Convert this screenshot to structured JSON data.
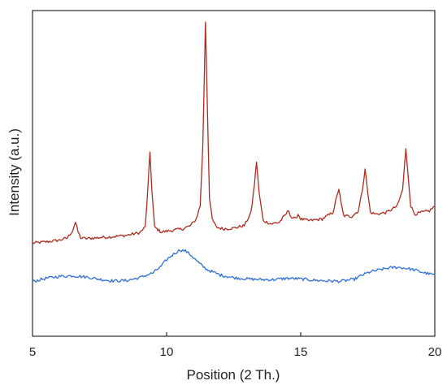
{
  "chart_data": {
    "type": "line",
    "title": "",
    "xlabel": "Position (2 Th.)",
    "ylabel": "Intensity (a.u.)",
    "xlim": [
      5,
      20
    ],
    "ylim": [
      0,
      100
    ],
    "x_ticks": [
      5,
      10,
      15,
      20
    ],
    "x_tick_labels": [
      "5",
      "10",
      "15",
      "20"
    ],
    "y_ticks_shown": false,
    "grid": false,
    "legend": "none",
    "series": [
      {
        "color": "#b22a1e",
        "x": [
          5.0,
          5.5,
          6.0,
          6.3,
          6.5,
          6.6,
          6.7,
          6.8,
          7.0,
          7.5,
          8.0,
          8.5,
          9.0,
          9.2,
          9.3,
          9.38,
          9.45,
          9.55,
          9.8,
          10.2,
          10.6,
          10.9,
          11.1,
          11.25,
          11.35,
          11.45,
          11.52,
          11.6,
          11.7,
          11.85,
          12.1,
          12.5,
          12.9,
          13.15,
          13.28,
          13.35,
          13.45,
          13.6,
          13.9,
          14.2,
          14.45,
          14.55,
          14.65,
          14.8,
          14.9,
          15.0,
          15.3,
          15.8,
          16.2,
          16.35,
          16.42,
          16.5,
          16.6,
          16.9,
          17.15,
          17.3,
          17.4,
          17.5,
          17.6,
          17.8,
          18.2,
          18.6,
          18.8,
          18.92,
          19.0,
          19.1,
          19.25,
          19.5,
          19.8,
          20.0
        ],
        "y": [
          28.6,
          29.0,
          29.5,
          30.2,
          32.5,
          35.0,
          32.0,
          30.2,
          30.0,
          30.3,
          30.6,
          31.0,
          31.8,
          33.5,
          45.0,
          56.6,
          45.0,
          33.5,
          32.0,
          32.5,
          33.0,
          34.0,
          36.0,
          40.0,
          58.0,
          96.6,
          70.0,
          42.0,
          36.0,
          33.5,
          33.0,
          33.2,
          34.0,
          38.0,
          47.0,
          53.7,
          44.0,
          35.5,
          34.5,
          35.0,
          37.5,
          38.7,
          36.5,
          36.0,
          37.5,
          36.0,
          35.5,
          36.0,
          38.0,
          43.0,
          45.3,
          41.0,
          37.0,
          36.8,
          38.5,
          45.0,
          51.6,
          44.0,
          38.0,
          37.5,
          38.0,
          40.0,
          45.0,
          57.4,
          50.0,
          40.0,
          37.5,
          38.0,
          38.5,
          40.0
        ]
      },
      {
        "color": "#2e6fd8",
        "x": [
          5.0,
          5.5,
          6.0,
          6.5,
          7.0,
          7.5,
          8.0,
          8.5,
          9.0,
          9.5,
          9.8,
          10.0,
          10.3,
          10.5,
          10.7,
          10.9,
          11.2,
          11.5,
          12.0,
          12.5,
          13.0,
          13.5,
          14.0,
          14.5,
          15.0,
          15.5,
          16.0,
          16.5,
          17.0,
          17.3,
          17.6,
          18.0,
          18.3,
          18.6,
          19.0,
          19.3,
          19.6,
          20.0
        ],
        "y": [
          16.8,
          17.8,
          18.4,
          18.6,
          18.2,
          17.5,
          17.0,
          17.1,
          18.0,
          19.5,
          21.5,
          23.5,
          25.5,
          26.5,
          26.2,
          25.0,
          22.5,
          20.5,
          18.8,
          18.0,
          17.6,
          17.4,
          17.4,
          17.8,
          17.6,
          17.2,
          17.0,
          16.9,
          17.5,
          18.8,
          19.8,
          20.5,
          21.0,
          21.2,
          20.8,
          20.2,
          19.5,
          18.8
        ]
      }
    ]
  }
}
